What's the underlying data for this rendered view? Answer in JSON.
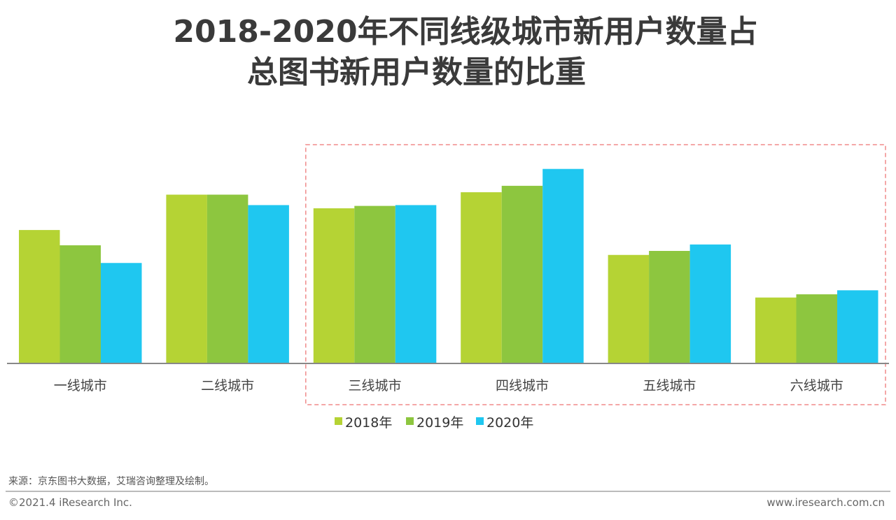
{
  "chart_data": {
    "type": "bar",
    "title": "2018-2020年不同线级城市新用户数量占总图书新用户数量的比重",
    "title_lines": [
      "2018-2020年不同线级城市新用户数量占",
      "总图书新用户数量的比重"
    ],
    "categories": [
      "一线城市",
      "二线城市",
      "三线城市",
      "四线城市",
      "五线城市",
      "六线城市"
    ],
    "series": [
      {
        "name": "2018年",
        "color": "#b5d334",
        "values": [
          16.6,
          21.0,
          19.3,
          21.3,
          13.5,
          8.2
        ]
      },
      {
        "name": "2019年",
        "color": "#8dc63f",
        "values": [
          14.7,
          21.0,
          19.6,
          22.1,
          14.0,
          8.6
        ]
      },
      {
        "name": "2020年",
        "color": "#1fc7f0",
        "values": [
          12.5,
          19.7,
          19.7,
          24.2,
          14.8,
          9.1
        ]
      }
    ],
    "unit": "%",
    "ylim": [
      0,
      30
    ],
    "y_axis_shown": false,
    "grid": false,
    "legend": "bottom",
    "highlight": {
      "categories": [
        "三线城市",
        "四线城市",
        "五线城市",
        "六线城市"
      ],
      "style": "dashed-box",
      "color": "#f08a8a"
    },
    "xlabel": "",
    "ylabel": ""
  },
  "footer": {
    "source": "来源：京东图书大数据，艾瑞咨询整理及绘制。",
    "copyright": "©2021.4 iResearch Inc.",
    "website": "www.iresearch.com.cn"
  }
}
